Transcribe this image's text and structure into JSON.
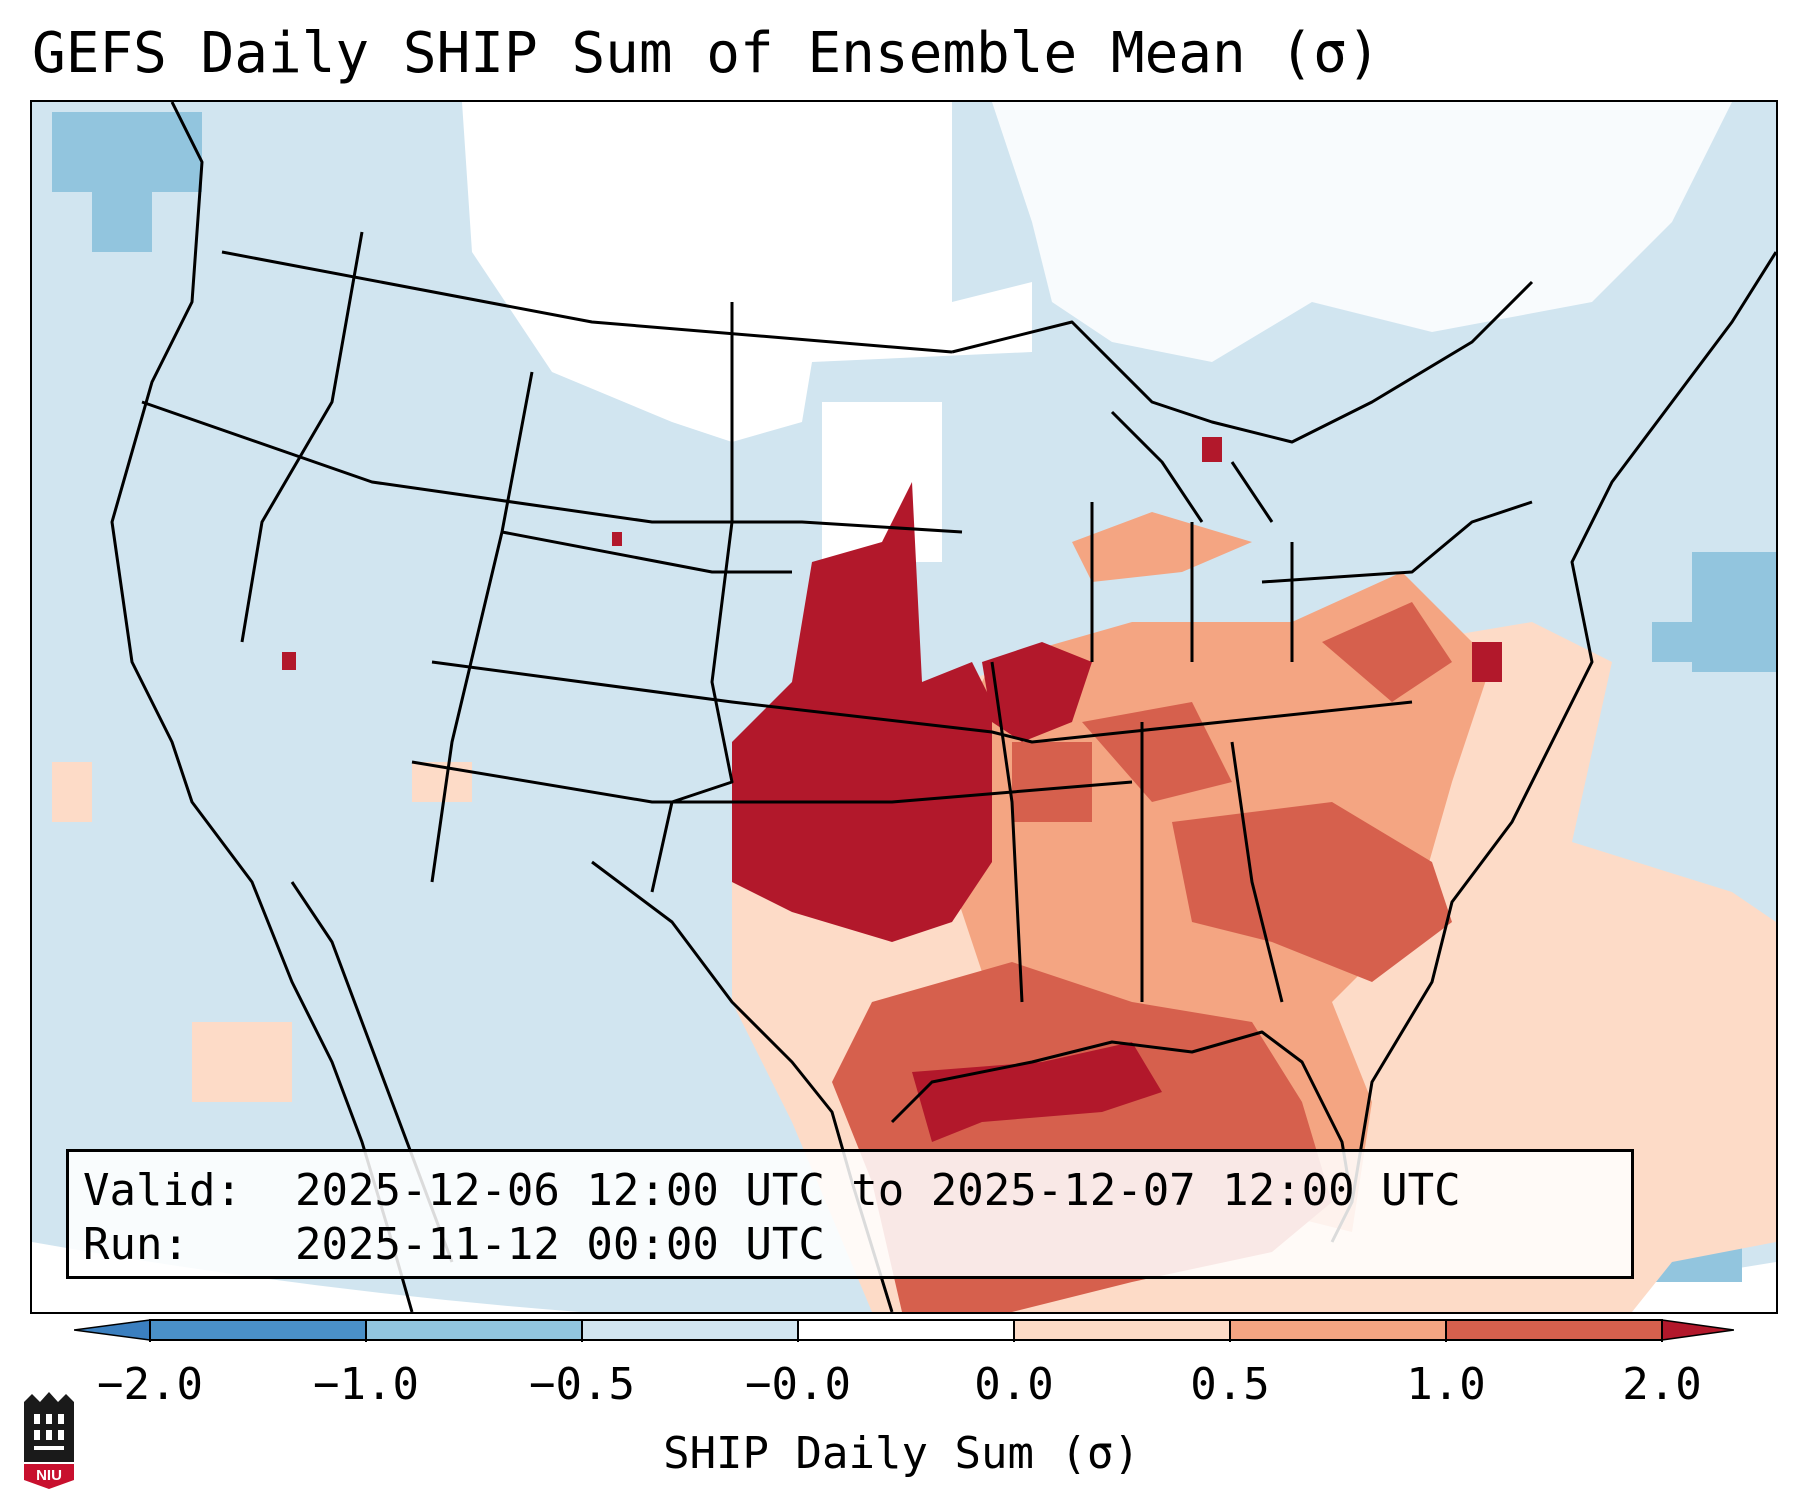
{
  "title": "GEFS Daily SHIP Sum of Ensemble Mean (σ)",
  "info": {
    "valid_label": "Valid:",
    "valid_value": "2025-12-06 12:00 UTC to 2025-12-07 12:00 UTC",
    "run_label": "Run:",
    "run_value": "2025-11-12 00:00 UTC"
  },
  "colorbar": {
    "label": "SHIP Daily Sum (σ)",
    "ticks": [
      "−2.0",
      "−1.0",
      "−0.5",
      "−0.0",
      "0.0",
      "0.5",
      "1.0",
      "2.0"
    ],
    "bins": [
      {
        "range": "< -2.0",
        "color": "#3b7fbf"
      },
      {
        "range": "-2.0 to -1.0",
        "color": "#4a90c8"
      },
      {
        "range": "-1.0 to -0.5",
        "color": "#92c5de"
      },
      {
        "range": "-0.5 to -0.0",
        "color": "#d1e5f0"
      },
      {
        "range": "-0.0 to 0.0",
        "color": "#ffffff"
      },
      {
        "range": "0.0 to 0.5",
        "color": "#fddbc7"
      },
      {
        "range": "0.5 to 1.0",
        "color": "#f4a582"
      },
      {
        "range": "1.0 to 2.0",
        "color": "#d6604d"
      },
      {
        "range": "> 2.0",
        "color": "#b2182b"
      }
    ]
  },
  "logo": {
    "text": "NIU",
    "name": "niu-logo"
  }
}
